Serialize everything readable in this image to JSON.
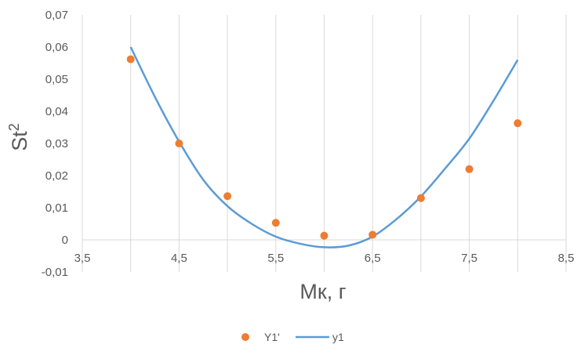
{
  "chart_data": {
    "type": "scatter",
    "xlabel": "Мк, г",
    "ylabel_base": "St",
    "ylabel_superscript": "2",
    "xlim": [
      3.5,
      8.5
    ],
    "ylim": [
      -0.01,
      0.07
    ],
    "x_ticks": [
      "3,5",
      "4,5",
      "5,5",
      "6,5",
      "7,5",
      "8,5"
    ],
    "x_tick_values": [
      3.5,
      4.5,
      5.5,
      6.5,
      7.5,
      8.5
    ],
    "x_minor_grid": [
      4.0,
      5.0,
      6.0,
      7.0,
      8.0
    ],
    "y_ticks": [
      "-0,01",
      "0",
      "0,01",
      "0,02",
      "0,03",
      "0,04",
      "0,05",
      "0,06",
      "0,07"
    ],
    "y_tick_values": [
      -0.01,
      0,
      0.01,
      0.02,
      0.03,
      0.04,
      0.05,
      0.06,
      0.07
    ],
    "grid": "vertical",
    "legend_position": "bottom",
    "series": [
      {
        "name": "Y1'",
        "kind": "markers",
        "color": "#ED7D31",
        "x": [
          4.0,
          4.5,
          5.0,
          5.5,
          6.0,
          6.5,
          7.0,
          7.5,
          8.0
        ],
        "y": [
          0.0562,
          0.03,
          0.0136,
          0.0053,
          0.0013,
          0.0016,
          0.013,
          0.022,
          0.0363
        ]
      },
      {
        "name": "y1",
        "kind": "line",
        "color": "#5B9BD5",
        "x": [
          4.0,
          4.25,
          4.5,
          4.75,
          5.0,
          5.25,
          5.5,
          5.75,
          6.0,
          6.25,
          6.5,
          6.75,
          7.0,
          7.25,
          7.5,
          7.75,
          8.0
        ],
        "y": [
          0.06,
          0.0445,
          0.0306,
          0.0187,
          0.0105,
          0.005,
          0.001,
          -0.0012,
          -0.0023,
          -0.0018,
          0.001,
          0.0065,
          0.0135,
          0.0222,
          0.0315,
          0.0433,
          0.056
        ]
      }
    ]
  }
}
